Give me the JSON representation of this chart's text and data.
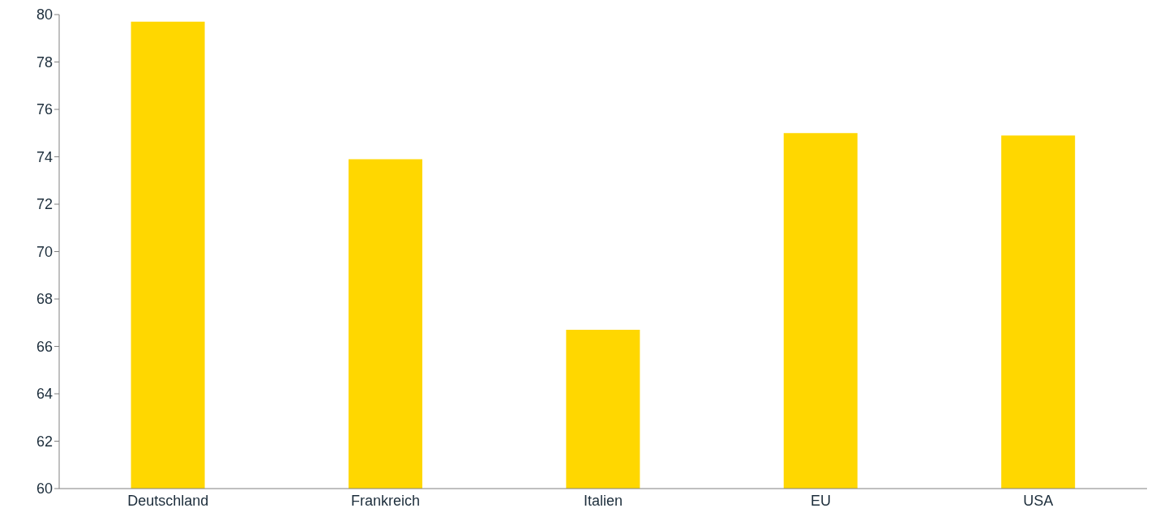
{
  "chart_data": {
    "type": "bar",
    "categories": [
      "Deutschland",
      "Frankreich",
      "Italien",
      "EU",
      "USA"
    ],
    "values": [
      79.7,
      73.9,
      66.7,
      75.0,
      74.9
    ],
    "color": "#ffd700",
    "ylim": [
      60,
      80
    ],
    "yticks": [
      60,
      62,
      64,
      66,
      68,
      70,
      72,
      74,
      76,
      78,
      80
    ],
    "grid": false
  }
}
